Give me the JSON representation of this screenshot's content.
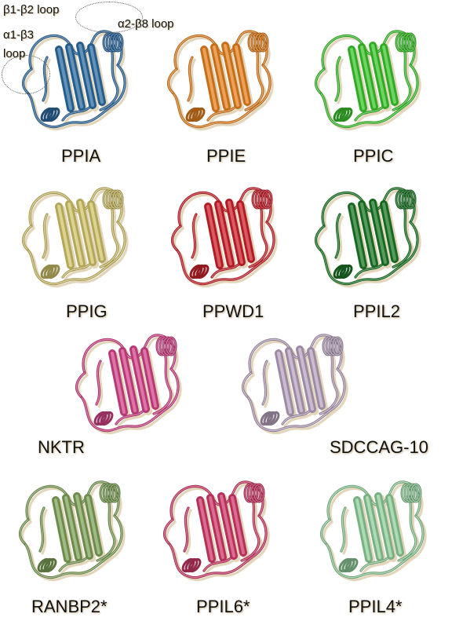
{
  "panels": [
    {
      "name": "PPIA",
      "color": "#2e6da4"
    },
    {
      "name": "PPIE",
      "color": "#e8821e"
    },
    {
      "name": "PPIC",
      "color": "#3cc82d"
    },
    {
      "name": "PPIG",
      "color": "#d2c46a"
    },
    {
      "name": "PPWD1",
      "color": "#d0222e"
    },
    {
      "name": "PPIL2",
      "color": "#1c7a28"
    },
    {
      "name": "NKTR",
      "color": "#d6448a"
    },
    {
      "name": "SDCCAG-10",
      "color": "#b9a4c0"
    },
    {
      "name": "RANBP2*",
      "color": "#7fa45a"
    },
    {
      "name": "PPIL6*",
      "color": "#d23a6a"
    },
    {
      "name": "PPIL4*",
      "color": "#8fcf9a"
    }
  ],
  "annotations": {
    "b1b2_loop": "β1-β2 loop",
    "a2b8_loop": "α2-β8 loop",
    "a1b3_line1": "α1-β3",
    "a1b3_line2": "loop"
  }
}
